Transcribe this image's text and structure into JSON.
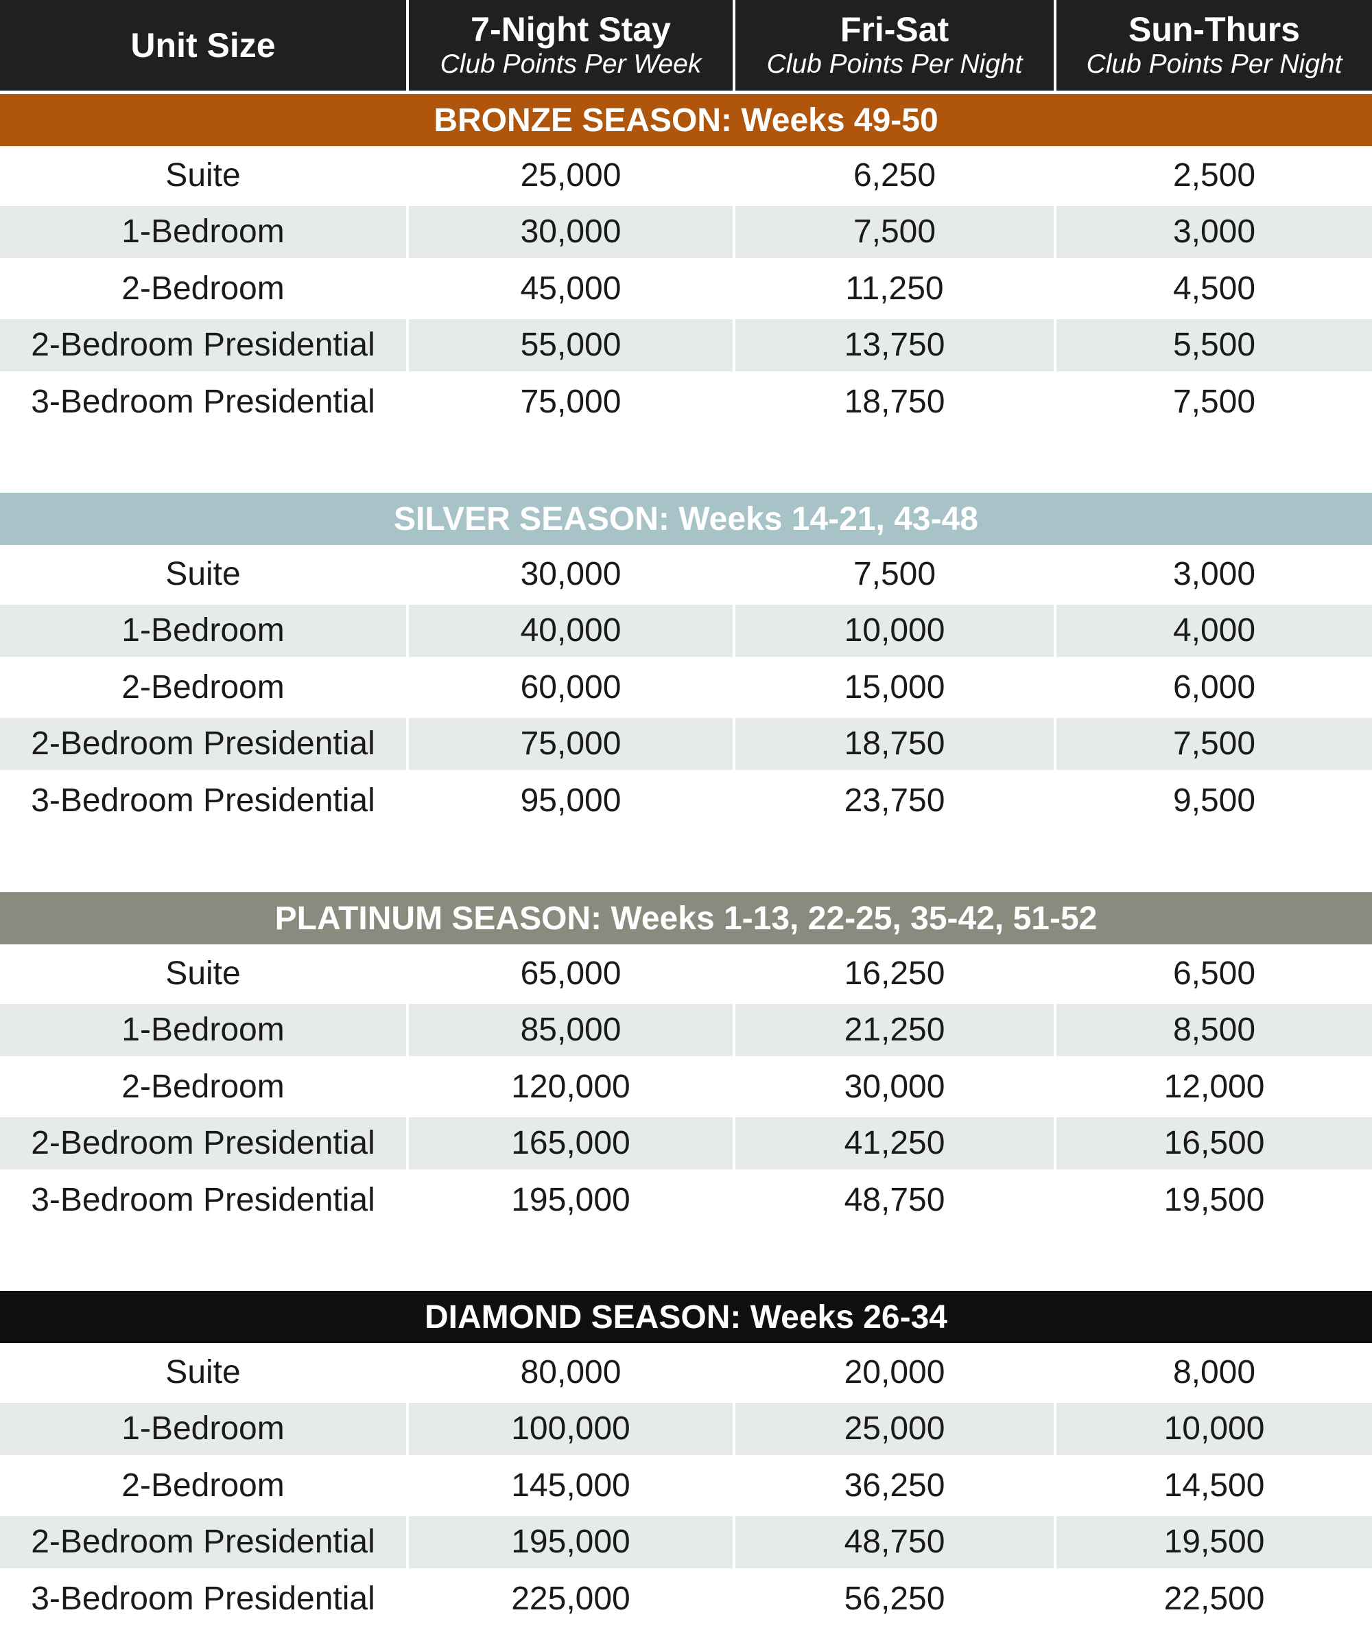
{
  "header": {
    "columns": [
      {
        "title": "Unit Size"
      },
      {
        "title": "7-Night Stay",
        "subtitle": "Club Points Per Week"
      },
      {
        "title": "Fri-Sat",
        "subtitle": "Club Points Per Night"
      },
      {
        "title": "Sun-Thurs",
        "subtitle": "Club Points Per Night"
      }
    ]
  },
  "sections": [
    {
      "title": "BRONZE SEASON: Weeks 49-50",
      "color": "#b0560c",
      "rows": [
        [
          "Suite",
          "25,000",
          "6,250",
          "2,500"
        ],
        [
          "1-Bedroom",
          "30,000",
          "7,500",
          "3,000"
        ],
        [
          "2-Bedroom",
          "45,000",
          "11,250",
          "4,500"
        ],
        [
          "2-Bedroom Presidential",
          "55,000",
          "13,750",
          "5,500"
        ],
        [
          "3-Bedroom Presidential",
          "75,000",
          "18,750",
          "7,500"
        ]
      ]
    },
    {
      "title": "SILVER SEASON: Weeks 14-21, 43-48",
      "color": "#a8c3c7",
      "rows": [
        [
          "Suite",
          "30,000",
          "7,500",
          "3,000"
        ],
        [
          "1-Bedroom",
          "40,000",
          "10,000",
          "4,000"
        ],
        [
          "2-Bedroom",
          "60,000",
          "15,000",
          "6,000"
        ],
        [
          "2-Bedroom Presidential",
          "75,000",
          "18,750",
          "7,500"
        ],
        [
          "3-Bedroom Presidential",
          "95,000",
          "23,750",
          "9,500"
        ]
      ]
    },
    {
      "title": "PLATINUM SEASON: Weeks 1-13, 22-25, 35-42, 51-52",
      "color": "#8a8b7f",
      "rows": [
        [
          "Suite",
          "65,000",
          "16,250",
          "6,500"
        ],
        [
          "1-Bedroom",
          "85,000",
          "21,250",
          "8,500"
        ],
        [
          "2-Bedroom",
          "120,000",
          "30,000",
          "12,000"
        ],
        [
          "2-Bedroom Presidential",
          "165,000",
          "41,250",
          "16,500"
        ],
        [
          "3-Bedroom Presidential",
          "195,000",
          "48,750",
          "19,500"
        ]
      ]
    },
    {
      "title": "DIAMOND SEASON: Weeks 26-34",
      "color": "#0f0f0f",
      "rows": [
        [
          "Suite",
          "80,000",
          "20,000",
          "8,000"
        ],
        [
          "1-Bedroom",
          "100,000",
          "25,000",
          "10,000"
        ],
        [
          "2-Bedroom",
          "145,000",
          "36,250",
          "14,500"
        ],
        [
          "2-Bedroom Presidential",
          "195,000",
          "48,750",
          "19,500"
        ],
        [
          "3-Bedroom Presidential",
          "225,000",
          "56,250",
          "22,500"
        ]
      ]
    }
  ]
}
